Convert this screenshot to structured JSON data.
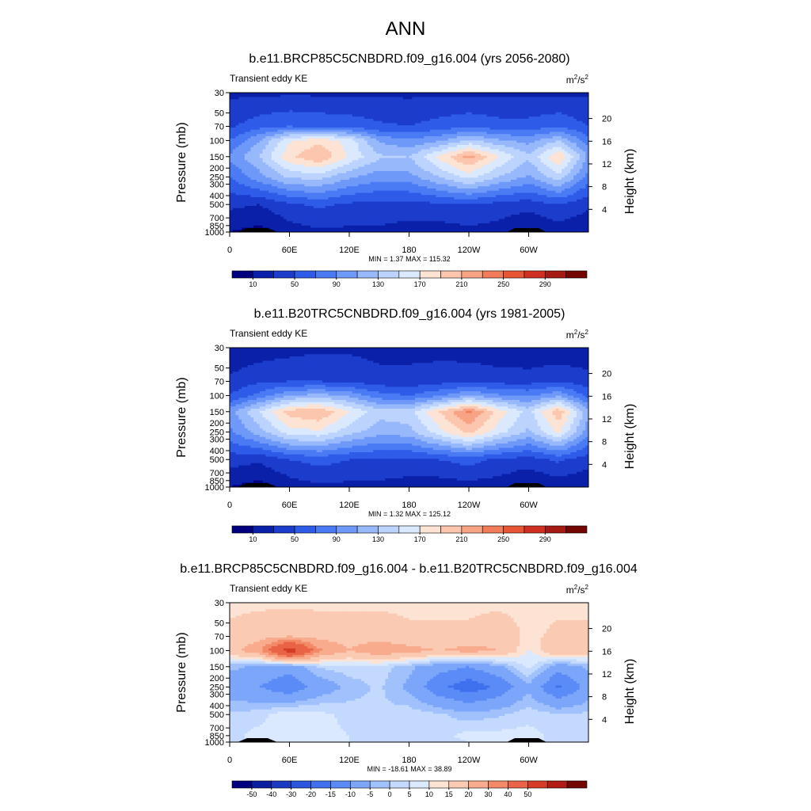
{
  "figure": {
    "main_title": "ANN",
    "colors": {
      "abs_scale": [
        "#00007f",
        "#0a20a8",
        "#1c3ccc",
        "#2e5ce8",
        "#4a7af4",
        "#6f99f8",
        "#97b8fb",
        "#bcd4fd",
        "#dbe9fe",
        "#fde3d3",
        "#fbc6ad",
        "#f7a384",
        "#f07c5a",
        "#e85535",
        "#cf3021",
        "#a51a12",
        "#730600"
      ],
      "diff_scale": [
        "#00007f",
        "#0a1ea0",
        "#1a38c0",
        "#2a55dd",
        "#3f70ee",
        "#5b8bf6",
        "#7ca6fa",
        "#a1c1fc",
        "#c4d9fe",
        "#dbe9fe",
        "#fde3d3",
        "#fbcab3",
        "#f8ab8d",
        "#f28a68",
        "#e96446",
        "#d63b28",
        "#b21c14",
        "#730600"
      ]
    }
  },
  "chart_data": [
    {
      "type": "heatmap",
      "title": "b.e11.BRCP85C5CNBDRD.f09_g16.004 (yrs 2056-2080)",
      "left_label": "Transient eddy KE",
      "units_base": "m",
      "units_exp1": "2",
      "units_mid": "/s",
      "units_exp2": "2",
      "ylabel": "Pressure (mb)",
      "y2label": "Height (km)",
      "x_ticks": [
        "0",
        "60E",
        "120E",
        "180",
        "120W",
        "60W"
      ],
      "x_tick_lon": [
        0,
        60,
        120,
        180,
        240,
        300
      ],
      "xlim": [
        0,
        360
      ],
      "y_ticks": [
        "30",
        "50",
        "70",
        "100",
        "150",
        "200",
        "250",
        "300",
        "400",
        "500",
        "700",
        "850",
        "1000"
      ],
      "y_tick_p": [
        30,
        50,
        70,
        100,
        150,
        200,
        250,
        300,
        400,
        500,
        700,
        850,
        1000
      ],
      "y2_ticks": [
        "20",
        "16",
        "12",
        "8",
        "4"
      ],
      "y2_tick_z": [
        20,
        16,
        12,
        8,
        4
      ],
      "stats": "MIN =   1.37  MAX = 115.32",
      "min": 1.37,
      "max": 115.32,
      "colorbar_labels": [
        "10",
        "50",
        "90",
        "130",
        "170",
        "210",
        "250",
        "290"
      ],
      "field": {
        "lon": [
          0,
          30,
          60,
          90,
          120,
          150,
          180,
          210,
          240,
          270,
          300,
          330,
          360
        ],
        "p": [
          30,
          70,
          100,
          150,
          250,
          500,
          850,
          1000
        ],
        "levels": [
          [
            18,
            18,
            18,
            18,
            18,
            18,
            18,
            18,
            18,
            18,
            18,
            18,
            18
          ],
          [
            28,
            36,
            40,
            38,
            36,
            32,
            30,
            34,
            38,
            34,
            34,
            38,
            30
          ],
          [
            40,
            60,
            88,
            98,
            86,
            58,
            52,
            58,
            72,
            62,
            56,
            70,
            44
          ],
          [
            52,
            70,
            98,
            110,
            88,
            72,
            70,
            92,
            114,
            90,
            72,
            100,
            58
          ],
          [
            40,
            56,
            72,
            74,
            62,
            54,
            56,
            70,
            84,
            70,
            58,
            76,
            46
          ],
          [
            22,
            20,
            28,
            32,
            28,
            26,
            26,
            28,
            30,
            26,
            24,
            30,
            22
          ],
          [
            14,
            10,
            18,
            22,
            20,
            20,
            18,
            18,
            20,
            18,
            12,
            18,
            14
          ],
          [
            10,
            4,
            14,
            18,
            18,
            16,
            14,
            14,
            16,
            14,
            8,
            14,
            10
          ]
        ]
      }
    },
    {
      "type": "heatmap",
      "title": "b.e11.B20TRC5CNBDRD.f09_g16.004 (yrs 1981-2005)",
      "left_label": "Transient eddy KE",
      "units_base": "m",
      "units_exp1": "2",
      "units_mid": "/s",
      "units_exp2": "2",
      "ylabel": "Pressure (mb)",
      "y2label": "Height (km)",
      "x_ticks": [
        "0",
        "60E",
        "120E",
        "180",
        "120W",
        "60W"
      ],
      "x_tick_lon": [
        0,
        60,
        120,
        180,
        240,
        300
      ],
      "xlim": [
        0,
        360
      ],
      "y_ticks": [
        "30",
        "50",
        "70",
        "100",
        "150",
        "200",
        "250",
        "300",
        "400",
        "500",
        "700",
        "850",
        "1000"
      ],
      "y_tick_p": [
        30,
        50,
        70,
        100,
        150,
        200,
        250,
        300,
        400,
        500,
        700,
        850,
        1000
      ],
      "y2_ticks": [
        "20",
        "16",
        "12",
        "8",
        "4"
      ],
      "y2_tick_z": [
        20,
        16,
        12,
        8,
        4
      ],
      "stats": "MIN =   1.32  MAX = 125.12",
      "min": 1.32,
      "max": 125.12,
      "colorbar_labels": [
        "10",
        "50",
        "90",
        "130",
        "170",
        "210",
        "250",
        "290"
      ],
      "field": {
        "lon": [
          0,
          30,
          60,
          90,
          120,
          150,
          180,
          210,
          240,
          270,
          300,
          330,
          360
        ],
        "p": [
          30,
          70,
          100,
          150,
          250,
          500,
          850,
          1000
        ],
        "levels": [
          [
            12,
            14,
            16,
            18,
            18,
            16,
            16,
            16,
            14,
            12,
            10,
            10,
            12
          ],
          [
            22,
            28,
            30,
            30,
            28,
            24,
            24,
            26,
            28,
            26,
            26,
            30,
            24
          ],
          [
            30,
            44,
            60,
            64,
            58,
            44,
            40,
            48,
            60,
            52,
            48,
            58,
            36
          ],
          [
            56,
            80,
            104,
            110,
            90,
            74,
            76,
            100,
            122,
            96,
            76,
            108,
            62
          ],
          [
            48,
            66,
            86,
            88,
            74,
            64,
            66,
            86,
            104,
            84,
            68,
            92,
            54
          ],
          [
            24,
            22,
            30,
            34,
            30,
            28,
            28,
            30,
            34,
            28,
            26,
            32,
            24
          ],
          [
            14,
            10,
            18,
            22,
            20,
            20,
            18,
            18,
            20,
            18,
            12,
            18,
            14
          ],
          [
            10,
            4,
            14,
            18,
            18,
            16,
            14,
            14,
            16,
            14,
            8,
            14,
            10
          ]
        ]
      }
    },
    {
      "type": "heatmap",
      "title": "b.e11.BRCP85C5CNBDRD.f09_g16.004 - b.e11.B20TRC5CNBDRD.f09_g16.004",
      "left_label": "Transient eddy KE",
      "units_base": "m",
      "units_exp1": "2",
      "units_mid": "/s",
      "units_exp2": "2",
      "ylabel": "Pressure (mb)",
      "y2label": "Height (km)",
      "x_ticks": [
        "0",
        "60E",
        "120E",
        "180",
        "120W",
        "60W"
      ],
      "x_tick_lon": [
        0,
        60,
        120,
        180,
        240,
        300
      ],
      "xlim": [
        0,
        360
      ],
      "y_ticks": [
        "30",
        "50",
        "70",
        "100",
        "150",
        "200",
        "250",
        "300",
        "400",
        "500",
        "700",
        "850",
        "1000"
      ],
      "y_tick_p": [
        30,
        50,
        70,
        100,
        150,
        200,
        250,
        300,
        400,
        500,
        700,
        850,
        1000
      ],
      "y2_ticks": [
        "20",
        "16",
        "12",
        "8",
        "4"
      ],
      "y2_tick_z": [
        20,
        16,
        12,
        8,
        4
      ],
      "stats": "MIN = -18.61  MAX =  38.89",
      "min": -18.61,
      "max": 38.89,
      "colorbar_labels": [
        "-50",
        "-40",
        "-30",
        "-20",
        "-15",
        "-10",
        "-5",
        "0",
        "5",
        "10",
        "15",
        "20",
        "30",
        "40",
        "50"
      ],
      "field": {
        "lon": [
          0,
          30,
          60,
          90,
          120,
          150,
          180,
          210,
          240,
          270,
          300,
          330,
          360
        ],
        "p": [
          30,
          70,
          100,
          150,
          250,
          500,
          850,
          1000
        ],
        "levels": [
          [
            4,
            4,
            4,
            4,
            4,
            4,
            4,
            4,
            4,
            4,
            4,
            4,
            4
          ],
          [
            6,
            8,
            10,
            8,
            8,
            8,
            6,
            6,
            6,
            8,
            4,
            6,
            6
          ],
          [
            8,
            14,
            36,
            16,
            10,
            14,
            12,
            10,
            12,
            10,
            2,
            10,
            8
          ],
          [
            -4,
            -6,
            -8,
            -2,
            -1,
            -1,
            -4,
            -8,
            -10,
            -6,
            1,
            -8,
            -4
          ],
          [
            -8,
            -10,
            -14,
            -8,
            -4,
            -2,
            -6,
            -14,
            -18,
            -14,
            -6,
            -16,
            -8
          ],
          [
            -2,
            -1,
            2,
            1,
            -1,
            -2,
            -1,
            -2,
            -4,
            -3,
            -1,
            -2,
            -2
          ],
          [
            -1,
            1,
            1,
            1,
            0,
            -1,
            -1,
            -1,
            1,
            1,
            1,
            -1,
            -1
          ],
          [
            -1,
            1,
            1,
            0,
            0,
            -1,
            -1,
            -1,
            0,
            1,
            1,
            -1,
            -1
          ]
        ]
      }
    }
  ]
}
